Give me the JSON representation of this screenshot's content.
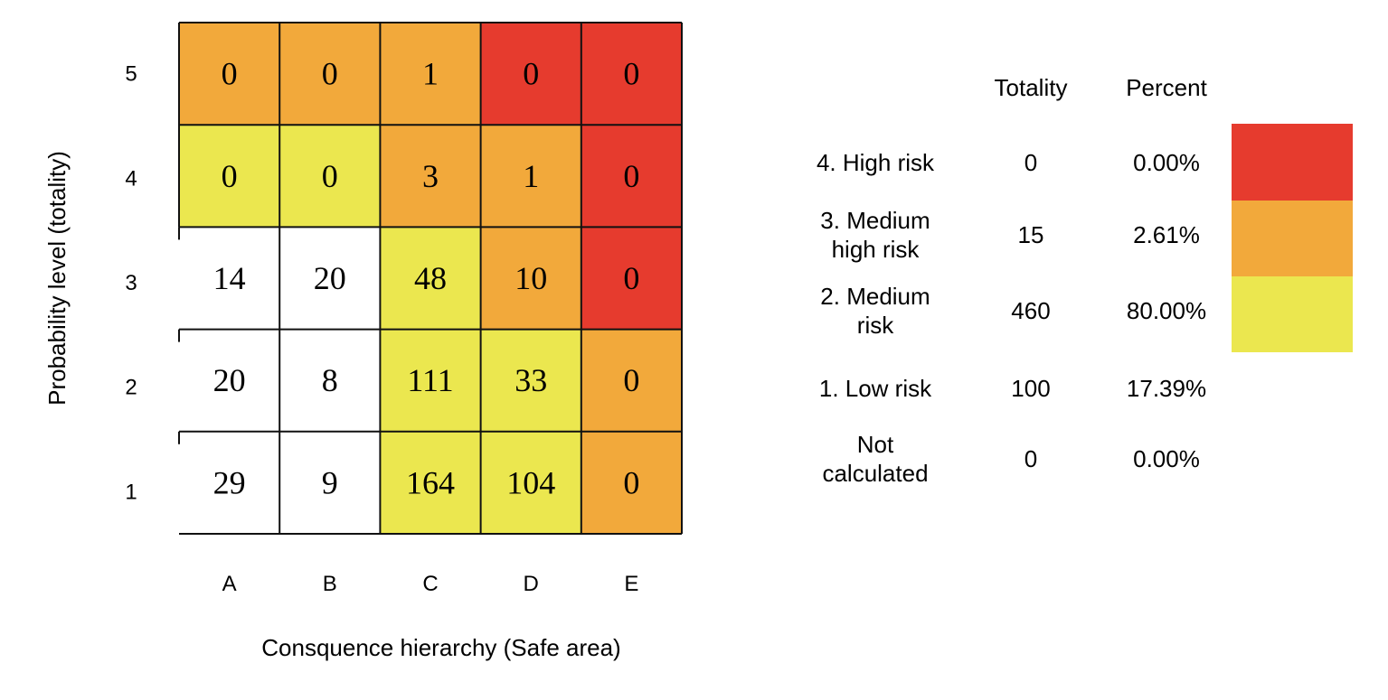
{
  "chart_data": {
    "type": "heatmap",
    "title": "",
    "xlabel": "Consquence hierarchy (Safe area)",
    "ylabel": "Probability level (totality)",
    "x_categories": [
      "A",
      "B",
      "C",
      "D",
      "E"
    ],
    "y_categories": [
      "5",
      "4",
      "3",
      "2",
      "1"
    ],
    "values": [
      [
        0,
        0,
        1,
        0,
        0
      ],
      [
        0,
        0,
        3,
        1,
        0
      ],
      [
        14,
        20,
        48,
        10,
        0
      ],
      [
        20,
        8,
        111,
        33,
        0
      ],
      [
        29,
        9,
        164,
        104,
        0
      ]
    ],
    "risk_levels": [
      [
        "medium-high",
        "medium-high",
        "medium-high",
        "high",
        "high"
      ],
      [
        "medium",
        "medium",
        "medium-high",
        "medium-high",
        "high"
      ],
      [
        "low",
        "low",
        "medium",
        "medium-high",
        "high"
      ],
      [
        "low",
        "low",
        "medium",
        "medium",
        "medium-high"
      ],
      [
        "low",
        "low",
        "medium",
        "medium",
        "medium-high"
      ]
    ],
    "colors": {
      "high": "#e63b2e",
      "medium-high": "#f2a93b",
      "medium": "#ebe74f",
      "low": "#ffffff"
    },
    "summary_table": {
      "columns": [
        "Totality",
        "Percent"
      ],
      "rows": [
        {
          "label_lines": [
            "4. High risk"
          ],
          "totality": "0",
          "percent": "0.00%",
          "color": "#e63b2e"
        },
        {
          "label_lines": [
            "3. Medium",
            "high risk"
          ],
          "totality": "15",
          "percent": "2.61%",
          "color": "#f2a93b"
        },
        {
          "label_lines": [
            "2. Medium",
            "risk"
          ],
          "totality": "460",
          "percent": "80.00%",
          "color": "#ebe74f"
        },
        {
          "label_lines": [
            "1. Low risk"
          ],
          "totality": "100",
          "percent": "17.39%",
          "color": null
        },
        {
          "label_lines": [
            "Not",
            "calculated"
          ],
          "totality": "0",
          "percent": "0.00%",
          "color": null
        }
      ]
    }
  }
}
